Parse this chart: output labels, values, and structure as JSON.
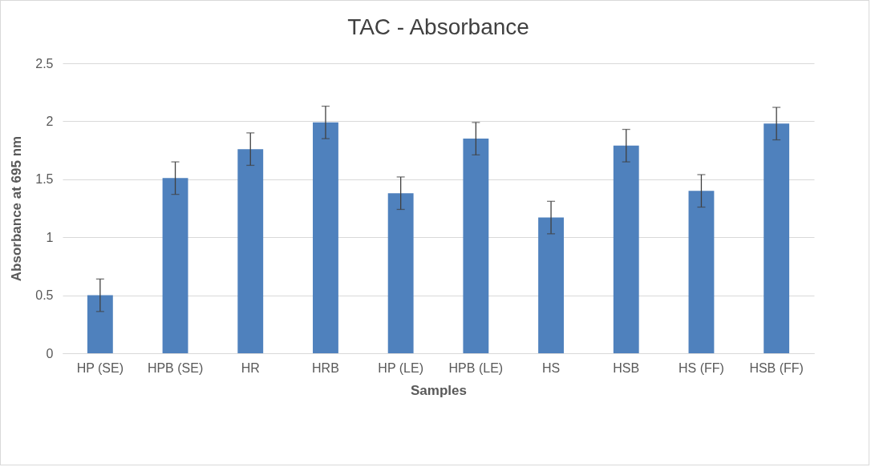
{
  "chart_data": {
    "type": "bar",
    "title": "TAC - Absorbance",
    "xlabel": "Samples",
    "ylabel": "Absorbance at 695 nm",
    "categories": [
      "HP (SE)",
      "HPB (SE)",
      "HR",
      "HRB",
      "HP (LE)",
      "HPB (LE)",
      "HS",
      "HSB",
      "HS (FF)",
      "HSB (FF)"
    ],
    "values": [
      0.5,
      1.51,
      1.76,
      1.99,
      1.38,
      1.85,
      1.17,
      1.79,
      1.4,
      1.98
    ],
    "errors": [
      0.14,
      0.14,
      0.14,
      0.14,
      0.14,
      0.14,
      0.14,
      0.14,
      0.14,
      0.14
    ],
    "color": "#4f81bd",
    "ylim": [
      0,
      2.5
    ],
    "yticks": [
      0,
      0.5,
      1,
      1.5,
      2,
      2.5
    ],
    "grid": "y"
  }
}
